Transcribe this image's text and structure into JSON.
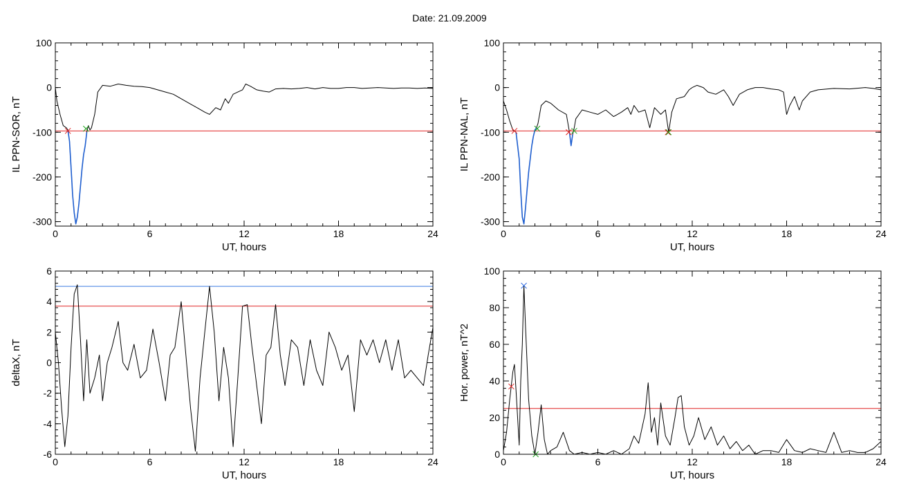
{
  "header": {
    "date_label": "Date:  21.09.2009"
  },
  "colors": {
    "trace": "#000000",
    "fit": "#1f5fd0",
    "threshold_red": "#e02020",
    "threshold_blue": "#3a7ae0",
    "marker_red": "#e02020",
    "marker_green": "#1aa01a",
    "marker_blue": "#2060e0"
  },
  "chart_data": [
    {
      "type": "line",
      "ylabel": "IL PPN-SOR, nT",
      "xlabel": "UT, hours",
      "xlim": [
        0,
        24
      ],
      "ylim": [
        -310,
        100
      ],
      "xticks": [
        0,
        6,
        12,
        18,
        24
      ],
      "yticks": [
        100,
        0,
        -100,
        -200,
        -300
      ],
      "series": [
        {
          "role": "trace",
          "x": [
            0,
            0.1,
            0.3,
            0.5,
            0.7,
            0.8,
            0.9,
            1.0,
            1.1,
            1.2,
            1.3,
            1.4,
            1.5,
            1.6,
            1.7,
            1.8,
            1.9,
            2.0,
            2.1,
            2.2,
            2.3,
            2.5,
            2.7,
            3.0,
            3.5,
            4.0,
            4.5,
            5.0,
            5.5,
            6.0,
            6.5,
            7.0,
            7.5,
            8.0,
            8.5,
            9.0,
            9.5,
            9.8,
            10.2,
            10.5,
            10.8,
            11.0,
            11.3,
            11.6,
            11.9,
            12.1,
            12.4,
            12.8,
            13.2,
            13.6,
            14.0,
            14.5,
            15.0,
            15.5,
            16.0,
            16.5,
            17.0,
            17.5,
            18.0,
            18.5,
            19.0,
            19.5,
            20.0,
            20.5,
            21.0,
            21.5,
            22.0,
            22.5,
            23.0,
            23.5,
            24.0
          ],
          "y": [
            0,
            -30,
            -60,
            -85,
            -90,
            -95,
            -120,
            -180,
            -240,
            -280,
            -305,
            -290,
            -260,
            -220,
            -180,
            -150,
            -130,
            -100,
            -85,
            -95,
            -90,
            -60,
            -10,
            5,
            3,
            8,
            5,
            3,
            2,
            0,
            -5,
            -10,
            -15,
            -25,
            -35,
            -45,
            -55,
            -60,
            -45,
            -50,
            -25,
            -35,
            -15,
            -10,
            -5,
            8,
            3,
            -5,
            -8,
            -10,
            -3,
            -2,
            -3,
            -2,
            0,
            -3,
            0,
            -2,
            -2,
            0,
            0,
            -2,
            -1,
            0,
            -1,
            -2,
            -1,
            -1,
            -2,
            -1,
            -2
          ]
        },
        {
          "role": "fit",
          "x": [
            0.8,
            0.9,
            1.0,
            1.1,
            1.2,
            1.3,
            1.4,
            1.5,
            1.6,
            1.7,
            1.8,
            1.9,
            2.0
          ],
          "y": [
            -95,
            -120,
            -180,
            -240,
            -280,
            -305,
            -290,
            -260,
            -220,
            -180,
            -150,
            -130,
            -100
          ]
        }
      ],
      "thresholds": [
        {
          "y": -97,
          "color": "red"
        }
      ],
      "markers": [
        {
          "x": 0.8,
          "y": -97,
          "color": "red"
        },
        {
          "x": 1.95,
          "y": -92,
          "color": "green"
        }
      ]
    },
    {
      "type": "line",
      "ylabel": "IL PPN-NAL, nT",
      "xlabel": "UT, hours",
      "xlim": [
        0,
        24
      ],
      "ylim": [
        -310,
        100
      ],
      "xticks": [
        0,
        6,
        12,
        18,
        24
      ],
      "yticks": [
        100,
        0,
        -100,
        -200,
        -300
      ],
      "series": [
        {
          "role": "trace",
          "x": [
            0,
            0.2,
            0.4,
            0.6,
            0.8,
            1.0,
            1.1,
            1.2,
            1.3,
            1.4,
            1.5,
            1.6,
            1.7,
            1.8,
            1.9,
            2.0,
            2.1,
            2.2,
            2.4,
            2.7,
            3.0,
            3.5,
            4.0,
            4.2,
            4.3,
            4.4,
            4.5,
            4.6,
            5.0,
            5.5,
            6.0,
            6.5,
            7.0,
            7.5,
            7.9,
            8.1,
            8.3,
            8.6,
            9.0,
            9.3,
            9.6,
            10.0,
            10.3,
            10.5,
            10.7,
            11.0,
            11.5,
            11.8,
            12.0,
            12.3,
            12.7,
            13.0,
            13.5,
            14.0,
            14.3,
            14.6,
            15.0,
            15.5,
            16.0,
            16.5,
            17.0,
            17.5,
            17.8,
            18.0,
            18.2,
            18.5,
            18.8,
            19.0,
            19.5,
            20.0,
            21.0,
            22.0,
            23.0,
            23.5,
            24.0
          ],
          "y": [
            -30,
            -50,
            -75,
            -95,
            -100,
            -160,
            -230,
            -290,
            -305,
            -270,
            -230,
            -190,
            -160,
            -130,
            -110,
            -95,
            -90,
            -80,
            -40,
            -30,
            -35,
            -50,
            -60,
            -100,
            -130,
            -105,
            -90,
            -70,
            -50,
            -55,
            -60,
            -50,
            -65,
            -55,
            -45,
            -60,
            -40,
            -55,
            -50,
            -90,
            -45,
            -60,
            -50,
            -100,
            -55,
            -25,
            -20,
            -5,
            0,
            5,
            0,
            -10,
            -15,
            -5,
            -20,
            -40,
            -15,
            -5,
            0,
            0,
            -3,
            -5,
            -10,
            -60,
            -40,
            -20,
            -50,
            -30,
            -10,
            -5,
            -2,
            -3,
            0,
            -2,
            -5
          ]
        },
        {
          "role": "fit",
          "x": [
            0.8,
            1.0,
            1.1,
            1.2,
            1.3,
            1.4,
            1.5,
            1.6,
            1.7,
            1.8,
            1.9,
            2.0,
            2.1
          ],
          "y": [
            -100,
            -160,
            -230,
            -290,
            -305,
            -270,
            -230,
            -190,
            -160,
            -130,
            -110,
            -95,
            -90
          ]
        },
        {
          "role": "fit",
          "x": [
            4.2,
            4.3,
            4.4
          ],
          "y": [
            -100,
            -130,
            -105
          ]
        }
      ],
      "thresholds": [
        {
          "y": -97,
          "color": "red"
        }
      ],
      "markers": [
        {
          "x": 0.7,
          "y": -97,
          "color": "red"
        },
        {
          "x": 2.15,
          "y": -92,
          "color": "green"
        },
        {
          "x": 4.15,
          "y": -100,
          "color": "red"
        },
        {
          "x": 4.5,
          "y": -97,
          "color": "green"
        },
        {
          "x": 10.45,
          "y": -100,
          "color": "red"
        },
        {
          "x": 10.5,
          "y": -100,
          "color": "green"
        }
      ]
    },
    {
      "type": "line",
      "ylabel": "deltaX, nT",
      "xlabel": "UT, hours",
      "xlim": [
        0,
        24
      ],
      "ylim": [
        -6,
        6
      ],
      "xticks": [
        0,
        6,
        12,
        18,
        24
      ],
      "yticks": [
        6,
        4,
        2,
        0,
        -2,
        -4,
        -6
      ],
      "series": [
        {
          "role": "trace",
          "x": [
            0,
            0.2,
            0.4,
            0.6,
            0.8,
            1.0,
            1.2,
            1.4,
            1.6,
            1.8,
            2.0,
            2.2,
            2.5,
            2.8,
            3.0,
            3.3,
            3.6,
            4.0,
            4.3,
            4.6,
            5.0,
            5.4,
            5.8,
            6.2,
            6.6,
            7.0,
            7.3,
            7.6,
            8.0,
            8.3,
            8.6,
            8.9,
            9.2,
            9.5,
            9.8,
            10.1,
            10.4,
            10.7,
            11.0,
            11.3,
            11.6,
            11.9,
            12.2,
            12.5,
            12.8,
            13.1,
            13.4,
            13.7,
            14.0,
            14.3,
            14.6,
            15.0,
            15.4,
            15.8,
            16.2,
            16.6,
            17.0,
            17.4,
            17.8,
            18.2,
            18.6,
            19.0,
            19.4,
            19.8,
            20.2,
            20.6,
            21.0,
            21.4,
            21.8,
            22.2,
            22.6,
            23.0,
            23.4,
            23.7,
            24.0
          ],
          "y": [
            2,
            0,
            -3,
            -5.5,
            -3.5,
            1,
            4.5,
            5.1,
            1.5,
            -2.5,
            1.5,
            -2,
            -1,
            0.5,
            -2.5,
            0,
            1,
            2.7,
            0,
            -0.5,
            1.2,
            -1,
            -0.5,
            2.2,
            0,
            -2.5,
            0.5,
            1,
            4,
            0.5,
            -3,
            -5.8,
            -1,
            2,
            5,
            2,
            -2.5,
            1,
            -1,
            -5.5,
            -1,
            3.7,
            3.8,
            1,
            -1.5,
            -4,
            0.5,
            1,
            3.8,
            0.5,
            -1.5,
            1.5,
            1,
            -1.5,
            1.5,
            -0.5,
            -1.5,
            2,
            1,
            -0.5,
            0.5,
            -3.2,
            1.5,
            0.5,
            1.5,
            0,
            1.5,
            -0.5,
            1.5,
            -1,
            -0.5,
            -1,
            -1.5,
            0.5,
            2.3
          ]
        }
      ],
      "thresholds": [
        {
          "y": 5.0,
          "color": "blue"
        },
        {
          "y": 3.7,
          "color": "red"
        }
      ],
      "markers": []
    },
    {
      "type": "line",
      "ylabel": "Hor. power, nT^2",
      "xlabel": "UT, hours",
      "xlim": [
        0,
        24
      ],
      "ylim": [
        0,
        100
      ],
      "xticks": [
        0,
        6,
        12,
        18,
        24
      ],
      "yticks": [
        100,
        80,
        60,
        40,
        20,
        0
      ],
      "series": [
        {
          "role": "trace",
          "x": [
            0,
            0.2,
            0.4,
            0.6,
            0.7,
            0.8,
            1.0,
            1.1,
            1.2,
            1.3,
            1.4,
            1.6,
            1.8,
            2.0,
            2.2,
            2.4,
            2.6,
            2.8,
            3.0,
            3.4,
            3.8,
            4.2,
            4.5,
            5.0,
            5.5,
            6.0,
            6.5,
            7.0,
            7.5,
            8.0,
            8.3,
            8.6,
            9.0,
            9.2,
            9.4,
            9.6,
            9.8,
            10.0,
            10.3,
            10.6,
            10.9,
            11.1,
            11.3,
            11.5,
            11.8,
            12.1,
            12.4,
            12.8,
            13.2,
            13.6,
            14.0,
            14.4,
            14.8,
            15.2,
            15.6,
            16.0,
            16.5,
            17.0,
            17.5,
            18.0,
            18.5,
            19.0,
            19.5,
            20.0,
            20.5,
            21.0,
            21.5,
            22.0,
            22.5,
            23.0,
            23.5,
            24.0
          ],
          "y": [
            2,
            12,
            30,
            45,
            49,
            35,
            5,
            40,
            60,
            92,
            70,
            30,
            10,
            0,
            12,
            27,
            8,
            0,
            2,
            4,
            12,
            2,
            0,
            1,
            0,
            1,
            0,
            2,
            0,
            3,
            10,
            6,
            22,
            39,
            12,
            20,
            5,
            28,
            10,
            5,
            20,
            31,
            32,
            15,
            5,
            10,
            20,
            8,
            15,
            5,
            10,
            3,
            7,
            2,
            5,
            0,
            2,
            2,
            1,
            8,
            2,
            1,
            3,
            2,
            1,
            12,
            1,
            2,
            1,
            1,
            3,
            7
          ]
        }
      ],
      "thresholds": [
        {
          "y": 25,
          "color": "red"
        }
      ],
      "markers": [
        {
          "x": 0.5,
          "y": 37,
          "color": "red"
        },
        {
          "x": 1.3,
          "y": 92,
          "color": "blue"
        },
        {
          "x": 2.05,
          "y": 0,
          "color": "green"
        }
      ]
    }
  ]
}
